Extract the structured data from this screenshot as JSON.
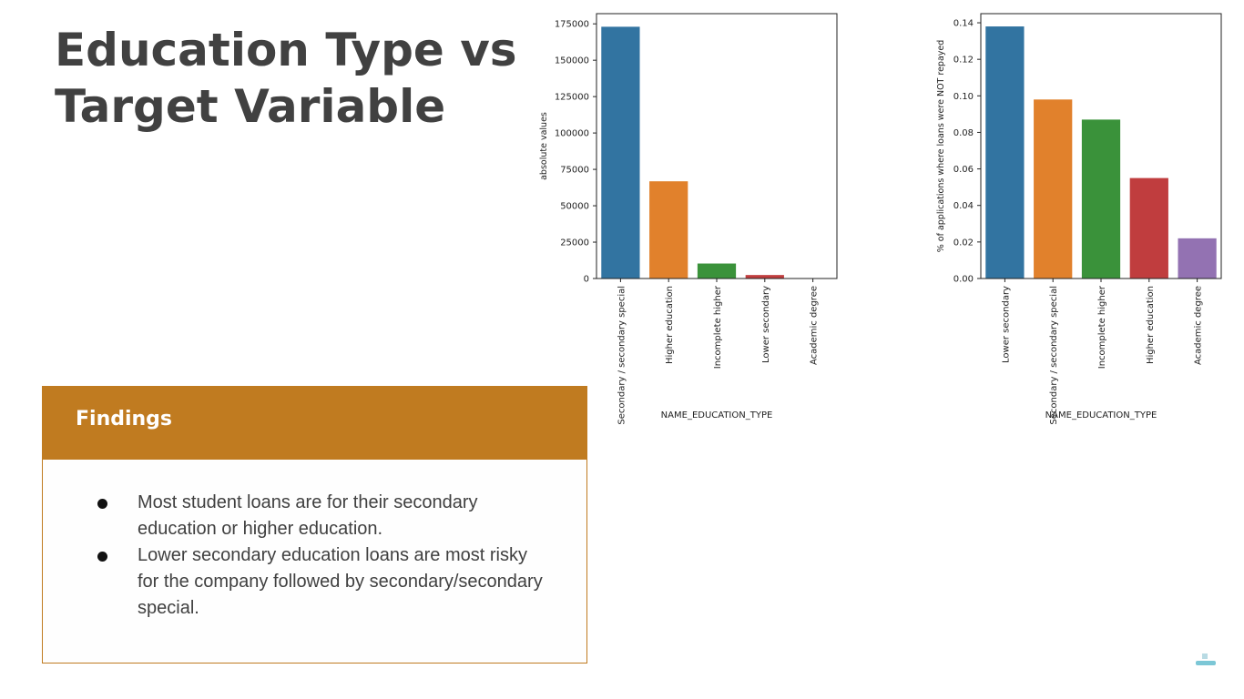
{
  "slide": {
    "title_lines": [
      "Education Type vs",
      "Target Variable"
    ],
    "findings": {
      "header": "Findings",
      "items": [
        "Most student loans are for their secondary education or higher education.",
        "Lower secondary education loans are most risky for the company followed by secondary/secondary special."
      ]
    }
  },
  "chart_data": [
    {
      "type": "bar",
      "categories": [
        "Secondary / secondary special",
        "Higher education",
        "Incomplete higher",
        "Lower secondary",
        "Academic degree"
      ],
      "values": [
        173000,
        66800,
        10300,
        2400,
        164
      ],
      "colors": [
        "#3274a1",
        "#e1812c",
        "#3a923a",
        "#c03d3e",
        "#9372b2"
      ],
      "xlabel": "NAME_EDUCATION_TYPE",
      "ylabel": "absolute values",
      "ylim": [
        0,
        182000
      ],
      "yticks": [
        0,
        25000,
        50000,
        75000,
        100000,
        125000,
        150000,
        175000
      ],
      "ytick_labels": [
        "0",
        "25000",
        "50000",
        "75000",
        "100000",
        "125000",
        "150000",
        "175000"
      ]
    },
    {
      "type": "bar",
      "categories": [
        "Lower secondary",
        "Secondary / secondary special",
        "Incomplete higher",
        "Higher education",
        "Academic degree"
      ],
      "values": [
        0.138,
        0.098,
        0.087,
        0.055,
        0.022
      ],
      "colors": [
        "#3274a1",
        "#e1812c",
        "#3a923a",
        "#c03d3e",
        "#9372b2"
      ],
      "xlabel": "NAME_EDUCATION_TYPE",
      "ylabel": "% of applications where loans were NOT repayed",
      "ylim": [
        0,
        0.145
      ],
      "yticks": [
        0,
        0.02,
        0.04,
        0.06,
        0.08,
        0.1,
        0.12,
        0.14
      ],
      "ytick_labels": [
        "0.00",
        "0.02",
        "0.04",
        "0.06",
        "0.08",
        "0.10",
        "0.12",
        "0.14"
      ]
    }
  ]
}
